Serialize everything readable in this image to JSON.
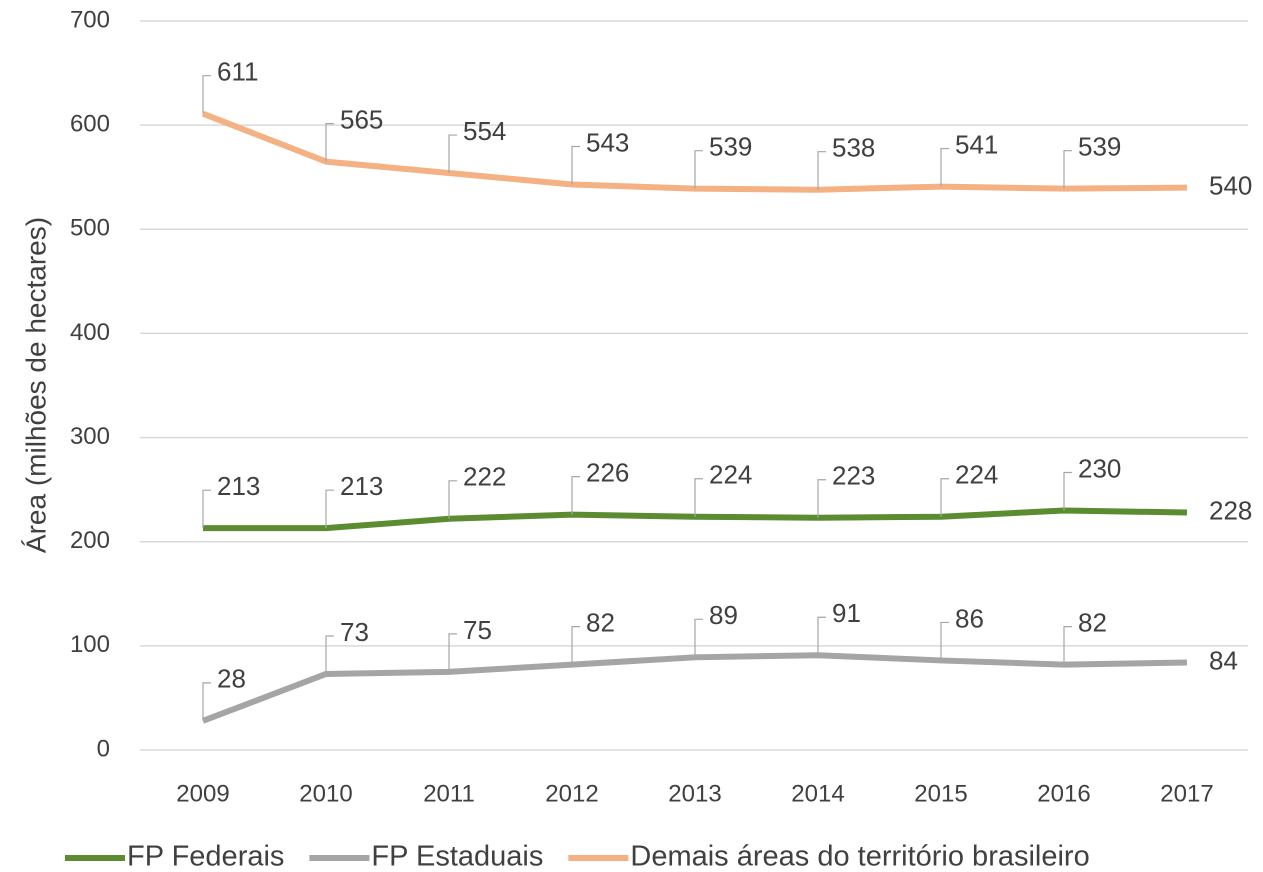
{
  "chart_data": {
    "type": "line",
    "y_label": "Área (milhões de hectares)",
    "categories": [
      "2009",
      "2010",
      "2011",
      "2012",
      "2013",
      "2014",
      "2015",
      "2016",
      "2017"
    ],
    "series": [
      {
        "name": "FP Federais",
        "color": "#5b8c32",
        "values": [
          213,
          213,
          222,
          226,
          224,
          223,
          224,
          230,
          228
        ]
      },
      {
        "name": "FP Estaduais",
        "color": "#a5a5a5",
        "values": [
          28,
          73,
          75,
          82,
          89,
          91,
          86,
          82,
          84
        ]
      },
      {
        "name": "Demais áreas do território brasileiro",
        "color": "#f4b183",
        "values": [
          611,
          565,
          554,
          543,
          539,
          538,
          541,
          539,
          540
        ]
      }
    ],
    "ylim": [
      0,
      700
    ],
    "yticks": [
      0,
      100,
      200,
      300,
      400,
      500,
      600,
      700
    ],
    "grid": true,
    "legend": "bottom"
  }
}
